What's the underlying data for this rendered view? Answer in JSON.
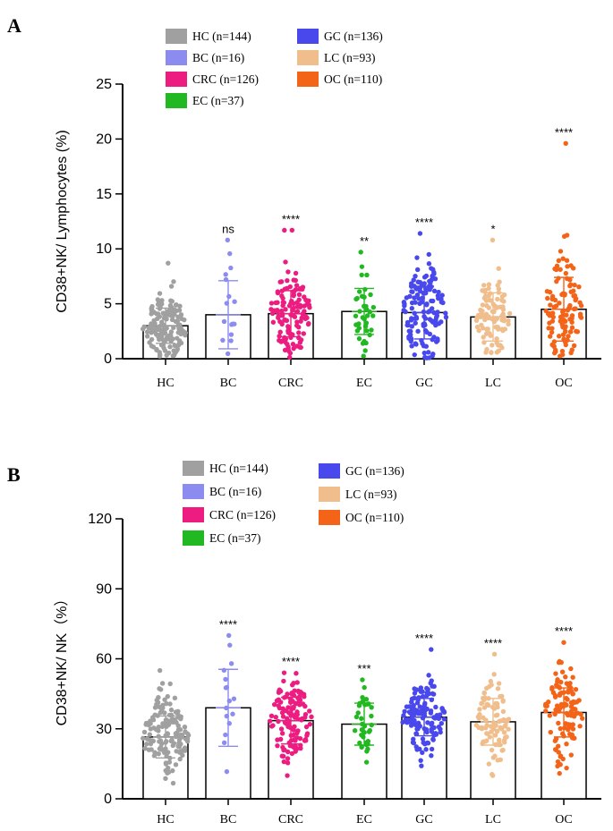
{
  "chart_data": [
    {
      "type": "bar",
      "panel_label": "A",
      "ylabel": "CD38+NK/ Lymphocytes (%)",
      "ylim": [
        0,
        25
      ],
      "yticks": [
        0,
        5,
        10,
        15,
        20,
        25
      ],
      "categories": [
        "HC",
        "BC",
        "CRC",
        "EC",
        "GC",
        "LC",
        "OC"
      ],
      "legend": [
        "HC (n=144)",
        "BC (n=16)",
        "CRC (n=126)",
        "EC (n=37)",
        "GC (n=136)",
        "LC (n=93)",
        "OC (n=110)"
      ],
      "n": [
        144,
        16,
        126,
        37,
        136,
        93,
        110
      ],
      "values": [
        3.0,
        4.0,
        4.1,
        4.3,
        4.2,
        3.8,
        4.5
      ],
      "sd": [
        1.6,
        3.1,
        2.1,
        2.1,
        2.4,
        2.2,
        2.9
      ],
      "max": [
        8.7,
        10.8,
        11.7,
        9.7,
        11.4,
        10.8,
        19.6
      ],
      "significance": [
        "",
        "ns",
        "****",
        "**",
        "****",
        "*",
        "****"
      ]
    },
    {
      "type": "bar",
      "panel_label": "B",
      "ylabel": "CD38+NK/ NK（%）",
      "ylim": [
        0,
        120
      ],
      "yticks": [
        0,
        30,
        60,
        90,
        120
      ],
      "categories": [
        "HC",
        "BC",
        "CRC",
        "EC",
        "GC",
        "LC",
        "OC"
      ],
      "legend": [
        "HC (n=144)",
        "BC (n=16)",
        "CRC (n=126)",
        "EC (n=37)",
        "GC (n=136)",
        "LC (n=93)",
        "OC (n=110)"
      ],
      "n": [
        144,
        16,
        126,
        37,
        136,
        93,
        110
      ],
      "values": [
        26.5,
        39.0,
        33.5,
        32.0,
        35.0,
        33.0,
        37.0
      ],
      "sd": [
        9.0,
        16.5,
        10.0,
        9.0,
        8.0,
        10.0,
        10.5
      ],
      "max": [
        55,
        70,
        54,
        51,
        64,
        62,
        67
      ],
      "significance": [
        "",
        "****",
        "****",
        "***",
        "****",
        "****",
        "****"
      ]
    }
  ],
  "colors": {
    "HC": "#a0a0a0",
    "BC": "#8c8cf0",
    "CRC": "#ec1c80",
    "EC": "#22b822",
    "GC": "#4848ec",
    "LC": "#f0be8c",
    "OC": "#f46418"
  }
}
